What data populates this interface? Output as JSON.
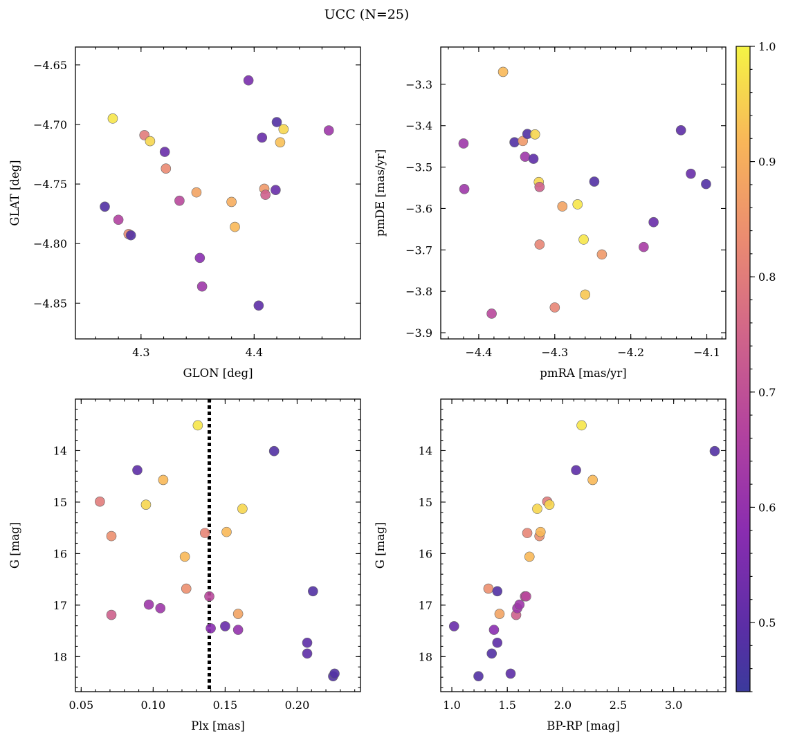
{
  "title": "UCC (N=25)",
  "colorbar": {
    "colormap": "plasma",
    "range": [
      0.44,
      1.0
    ],
    "ticks": [
      0.5,
      0.6,
      0.7,
      0.8,
      0.9,
      1.0
    ],
    "tick_labels": [
      "0.5",
      "0.6",
      "0.7",
      "0.8",
      "0.9",
      "1.0"
    ]
  },
  "panels": {
    "glon_glat": {
      "xlabel": "GLON [deg]",
      "ylabel": "GLAT [deg]"
    },
    "pm": {
      "xlabel": "pmRA [mas/yr]",
      "ylabel": "pmDE [mas/yr]"
    },
    "plx_g": {
      "xlabel": "Plx [mas]",
      "ylabel": "G [mag]"
    },
    "cmd": {
      "xlabel": "BP-RP [mag]",
      "ylabel": "G [mag]"
    }
  },
  "chart_data": [
    {
      "id": "glon_glat",
      "type": "scatter",
      "xlabel": "GLON [deg]",
      "ylabel": "GLAT [deg]",
      "xlim": [
        4.242,
        4.494
      ],
      "ylim": [
        -4.88,
        -4.635
      ],
      "y_inverted": false,
      "xticks": [
        4.3,
        4.4
      ],
      "xtick_labels": [
        "4.3",
        "4.4"
      ],
      "yticks": [
        -4.65,
        -4.7,
        -4.75,
        -4.8,
        -4.85
      ],
      "ytick_labels": [
        "−4.65",
        "−4.70",
        "−4.75",
        "−4.80",
        "−4.85"
      ],
      "x": [
        4.275,
        4.303,
        4.308,
        4.321,
        4.322,
        4.268,
        4.28,
        4.289,
        4.291,
        4.334,
        4.349,
        4.352,
        4.354,
        4.38,
        4.383,
        4.395,
        4.404,
        4.407,
        4.409,
        4.41,
        4.419,
        4.42,
        4.423,
        4.426,
        4.466
      ],
      "y": [
        -4.695,
        -4.709,
        -4.714,
        -4.723,
        -4.737,
        -4.769,
        -4.78,
        -4.792,
        -4.793,
        -4.764,
        -4.757,
        -4.812,
        -4.836,
        -4.765,
        -4.786,
        -4.663,
        -4.852,
        -4.711,
        -4.754,
        -4.759,
        -4.755,
        -4.698,
        -4.715,
        -4.704,
        -4.705
      ],
      "c": [
        0.98,
        0.8,
        0.96,
        0.52,
        0.83,
        0.48,
        0.66,
        0.83,
        0.48,
        0.68,
        0.88,
        0.58,
        0.62,
        0.9,
        0.92,
        0.55,
        0.5,
        0.52,
        0.86,
        0.74,
        0.52,
        0.48,
        0.93,
        0.96,
        0.62
      ]
    },
    {
      "id": "pm",
      "type": "scatter",
      "xlabel": "pmRA [mas/yr]",
      "ylabel": "pmDE [mas/yr]",
      "xlim": [
        -4.45,
        -4.075
      ],
      "ylim": [
        -3.915,
        -3.21
      ],
      "y_inverted": false,
      "xticks": [
        -4.4,
        -4.3,
        -4.2,
        -4.1
      ],
      "xtick_labels": [
        "−4.4",
        "−4.3",
        "−4.2",
        "−4.1"
      ],
      "yticks": [
        -3.3,
        -3.4,
        -3.5,
        -3.6,
        -3.7,
        -3.8,
        -3.9
      ],
      "ytick_labels": [
        "−3.3",
        "−3.4",
        "−3.5",
        "−3.6",
        "−3.7",
        "−3.8",
        "−3.9"
      ],
      "x": [
        -4.42,
        -4.419,
        -4.383,
        -4.368,
        -4.353,
        -4.342,
        -4.339,
        -4.336,
        -4.328,
        -4.326,
        -4.321,
        -4.32,
        -4.32,
        -4.3,
        -4.29,
        -4.27,
        -4.262,
        -4.26,
        -4.248,
        -4.238,
        -4.183,
        -4.17,
        -4.134,
        -4.121,
        -4.101
      ],
      "y": [
        -3.443,
        -3.553,
        -3.854,
        -3.27,
        -3.44,
        -3.437,
        -3.475,
        -3.42,
        -3.48,
        -3.421,
        -3.536,
        -3.548,
        -3.687,
        -3.839,
        -3.595,
        -3.59,
        -3.675,
        -3.808,
        -3.535,
        -3.711,
        -3.693,
        -3.633,
        -3.411,
        -3.516,
        -3.541
      ],
      "c": [
        0.62,
        0.62,
        0.68,
        0.92,
        0.48,
        0.86,
        0.62,
        0.48,
        0.5,
        0.96,
        0.96,
        0.74,
        0.82,
        0.82,
        0.88,
        0.98,
        0.98,
        0.94,
        0.48,
        0.86,
        0.64,
        0.52,
        0.5,
        0.52,
        0.48
      ]
    },
    {
      "id": "plx_g",
      "type": "scatter",
      "xlabel": "Plx [mas]",
      "ylabel": "G [mag]",
      "xlim": [
        0.046,
        0.244
      ],
      "ylim": [
        18.68,
        13.0
      ],
      "y_inverted": true,
      "xticks": [
        0.05,
        0.1,
        0.15,
        0.2
      ],
      "xtick_labels": [
        "0.05",
        "0.10",
        "0.15",
        "0.20"
      ],
      "yticks": [
        14,
        15,
        16,
        17,
        18
      ],
      "ytick_labels": [
        "14",
        "15",
        "16",
        "17",
        "18"
      ],
      "vline": {
        "x": 0.139,
        "style": "dotted"
      },
      "x": [
        0.063,
        0.071,
        0.071,
        0.089,
        0.095,
        0.097,
        0.105,
        0.107,
        0.122,
        0.123,
        0.131,
        0.136,
        0.139,
        0.14,
        0.15,
        0.151,
        0.159,
        0.159,
        0.162,
        0.184,
        0.207,
        0.207,
        0.211,
        0.225,
        0.226
      ],
      "y": [
        14.99,
        15.66,
        17.19,
        14.38,
        15.05,
        16.99,
        17.06,
        14.57,
        16.06,
        16.68,
        13.51,
        15.6,
        16.83,
        17.45,
        17.41,
        15.58,
        17.48,
        17.17,
        15.13,
        14.01,
        17.73,
        17.94,
        16.73,
        18.38,
        18.33
      ],
      "c": [
        0.8,
        0.84,
        0.74,
        0.5,
        0.96,
        0.62,
        0.62,
        0.92,
        0.92,
        0.84,
        0.98,
        0.82,
        0.68,
        0.58,
        0.52,
        0.92,
        0.6,
        0.88,
        0.96,
        0.48,
        0.5,
        0.5,
        0.48,
        0.48,
        0.48
      ]
    },
    {
      "id": "cmd",
      "type": "scatter",
      "xlabel": "BP-RP [mag]",
      "ylabel": "G [mag]",
      "xlim": [
        0.9,
        3.47
      ],
      "ylim": [
        18.68,
        13.0
      ],
      "y_inverted": true,
      "xticks": [
        1.0,
        1.5,
        2.0,
        2.5,
        3.0
      ],
      "xtick_labels": [
        "1.0",
        "1.5",
        "2.0",
        "2.5",
        "3.0"
      ],
      "yticks": [
        14,
        15,
        16,
        17,
        18
      ],
      "ytick_labels": [
        "14",
        "15",
        "16",
        "17",
        "18"
      ],
      "x": [
        1.02,
        1.24,
        1.33,
        1.36,
        1.38,
        1.41,
        1.41,
        1.43,
        1.53,
        1.58,
        1.59,
        1.61,
        1.66,
        1.68,
        1.7,
        1.77,
        1.79,
        1.8,
        1.86,
        1.88,
        2.12,
        2.17,
        2.27,
        3.37,
        1.67
      ],
      "y": [
        17.41,
        18.38,
        16.68,
        17.94,
        17.48,
        17.73,
        16.73,
        17.17,
        18.33,
        17.19,
        17.06,
        16.99,
        16.83,
        15.6,
        16.06,
        15.13,
        15.66,
        15.58,
        14.99,
        15.05,
        14.38,
        13.51,
        14.57,
        14.01,
        16.83
      ],
      "c": [
        0.52,
        0.48,
        0.84,
        0.48,
        0.58,
        0.5,
        0.48,
        0.88,
        0.5,
        0.74,
        0.62,
        0.62,
        0.68,
        0.82,
        0.92,
        0.96,
        0.84,
        0.92,
        0.8,
        0.96,
        0.5,
        0.98,
        0.92,
        0.48,
        0.68
      ]
    }
  ]
}
